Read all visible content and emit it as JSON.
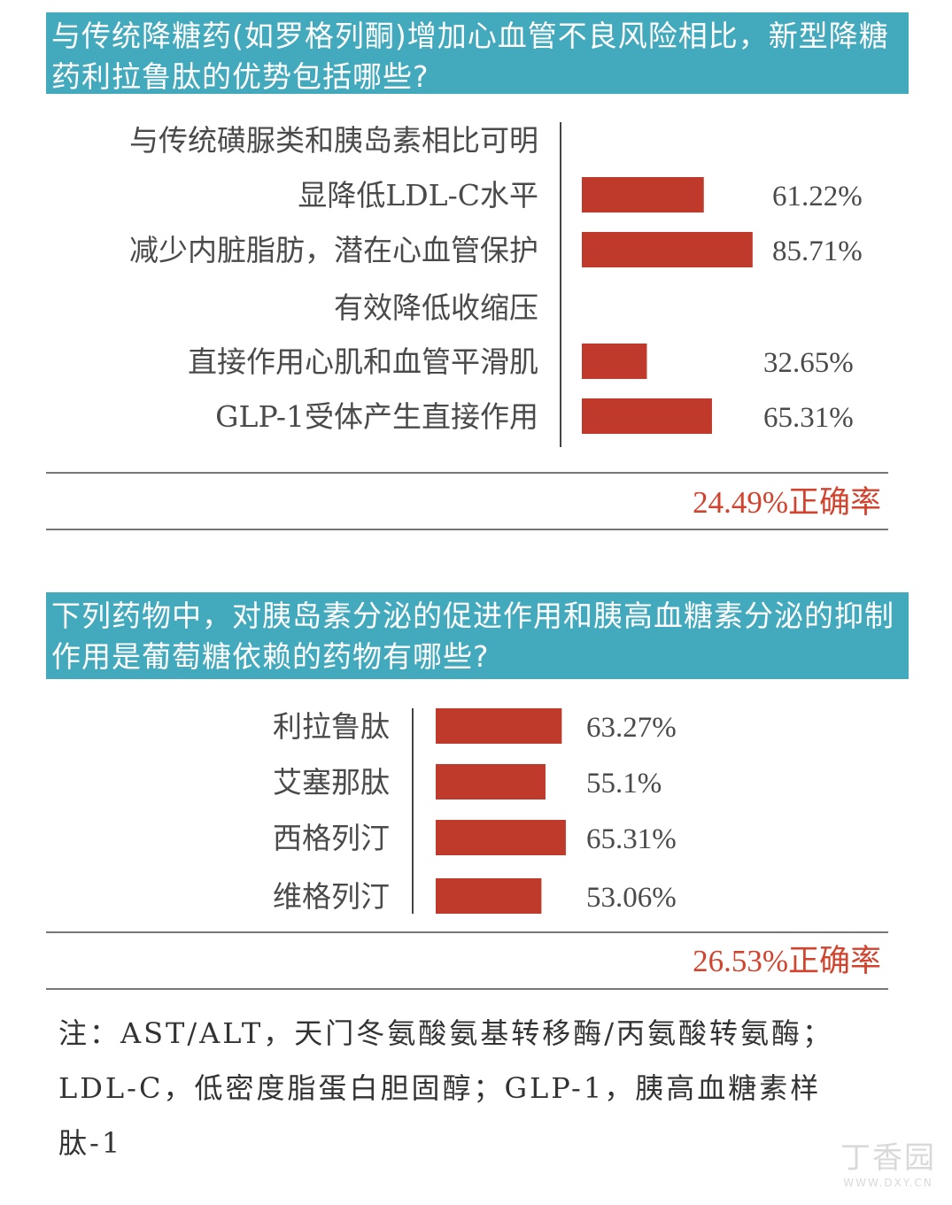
{
  "questions": [
    {
      "title": "与传统降糖药(如罗格列酮)增加心血管不良风险相比，新型降糖药利拉鲁肽的优势包括哪些?",
      "rate_label": "24.49%正确率"
    },
    {
      "title": "下列药物中，对胰岛素分泌的促进作用和胰高血糖素分泌的抑制作用是葡萄糖依赖的药物有哪些?",
      "rate_label": "26.53%正确率"
    }
  ],
  "chart_data": [
    {
      "type": "bar",
      "orientation": "horizontal",
      "categories": [
        "与传统磺脲类和胰岛素相比可明",
        "显降低LDL-C水平",
        "减少内脏脂肪，潜在心血管保护",
        "有效降低收缩压",
        "直接作用心肌和血管平滑肌",
        "GLP-1受体产生直接作用"
      ],
      "values": [
        null,
        61.22,
        85.71,
        null,
        32.65,
        65.31
      ],
      "value_labels": [
        "",
        "61.22%",
        "85.71%",
        "",
        "32.65%",
        "65.31%"
      ],
      "unit": "%",
      "xlim": [
        0,
        100
      ],
      "grid": false,
      "color": "#c03a2b"
    },
    {
      "type": "bar",
      "orientation": "horizontal",
      "categories": [
        "利拉鲁肽",
        "艾塞那肽",
        "西格列汀",
        "维格列汀"
      ],
      "values": [
        63.27,
        55.1,
        65.31,
        53.06
      ],
      "value_labels": [
        "63.27%",
        "55.1%",
        "65.31%",
        "53.06%"
      ],
      "unit": "%",
      "xlim": [
        0,
        100
      ],
      "grid": false,
      "color": "#c03a2b"
    }
  ],
  "note": {
    "lines": [
      "注：AST/ALT，天门冬氨酸氨基转移酶/丙氨酸转氨酶；",
      "LDL-C，低密度脂蛋白胆固醇；GLP-1，胰高血糖素样",
      "肽-1"
    ]
  },
  "watermark": {
    "name": "丁香园",
    "url": "WWW.DXY.CN"
  },
  "colors": {
    "header_bg": "#43a9bd",
    "bar": "#c03a2b",
    "rate_text": "#d2432e"
  }
}
